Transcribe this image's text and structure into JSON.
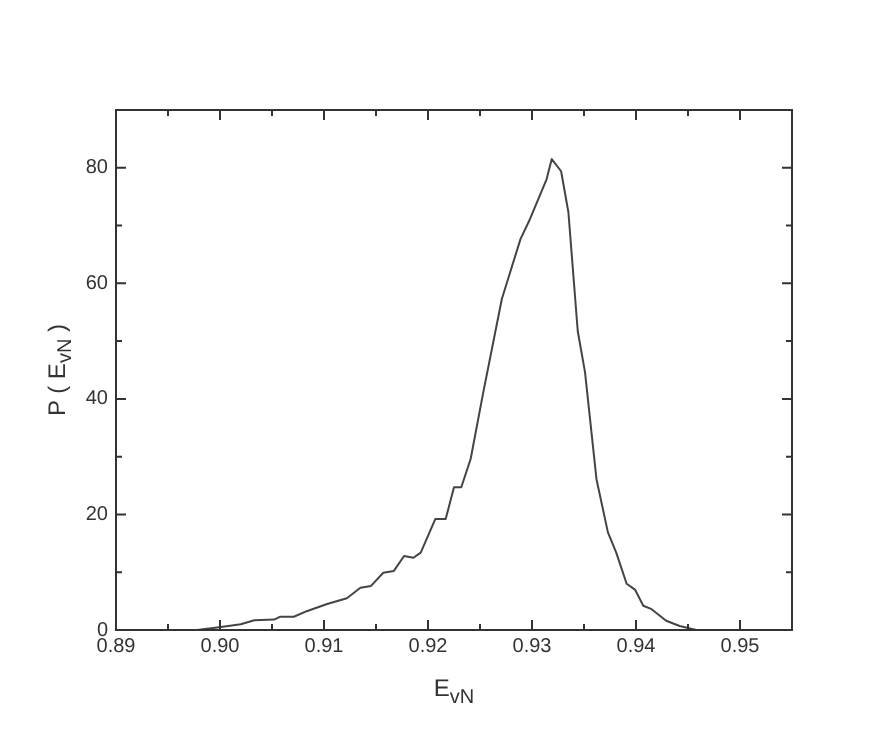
{
  "chart_data": {
    "type": "line",
    "xlabel": "E$_{vN}$",
    "ylabel": "P ( E$_{vN}$ )",
    "x": [
      0.8978,
      0.9001,
      0.902,
      0.9033,
      0.9052,
      0.9058,
      0.9071,
      0.9084,
      0.9103,
      0.9122,
      0.9135,
      0.9145,
      0.9157,
      0.9167,
      0.9177,
      0.9186,
      0.9193,
      0.9207,
      0.9217,
      0.9225,
      0.9232,
      0.9241,
      0.9253,
      0.9271,
      0.9289,
      0.9298,
      0.9314,
      0.9319,
      0.9328,
      0.9335,
      0.9344,
      0.9351,
      0.9362,
      0.9373,
      0.9381,
      0.9391,
      0.9399,
      0.9407,
      0.9415,
      0.9429,
      0.9442,
      0.9458
    ],
    "series": [
      {
        "color": "#444444",
        "values": [
          0,
          0.5,
          1,
          1.7,
          1.8,
          2.3,
          2.3,
          3.3,
          4.5,
          5.5,
          7.3,
          7.6,
          9.9,
          10.2,
          12.8,
          12.5,
          13.4,
          19.2,
          19.2,
          24.7,
          24.7,
          29.6,
          41,
          57.3,
          67.7,
          71.1,
          78,
          81.5,
          79.4,
          72.3,
          51.7,
          44.6,
          26.1,
          16.9,
          13.4,
          8,
          7,
          4.2,
          3.6,
          1.6,
          0.7,
          0
        ]
      }
    ],
    "xlim": [
      0.89,
      0.955
    ],
    "xticks": [
      {
        "value": 0.89,
        "label": "0.89"
      },
      {
        "value": 0.895,
        "label": null
      },
      {
        "value": 0.9,
        "label": "0.90"
      },
      {
        "value": 0.905,
        "label": null
      },
      {
        "value": 0.91,
        "label": "0.91"
      },
      {
        "value": 0.915,
        "label": null
      },
      {
        "value": 0.92,
        "label": "0.92"
      },
      {
        "value": 0.925,
        "label": null
      },
      {
        "value": 0.93,
        "label": "0.93"
      },
      {
        "value": 0.935,
        "label": null
      },
      {
        "value": 0.94,
        "label": "0.94"
      },
      {
        "value": 0.945,
        "label": null
      },
      {
        "value": 0.95,
        "label": "0.95"
      }
    ],
    "ylim": [
      0,
      90
    ],
    "yticks": [
      0,
      {
        "value": 10,
        "label": null
      },
      20,
      {
        "value": 30,
        "label": null
      },
      40,
      {
        "value": 50,
        "label": null
      },
      60,
      {
        "value": 70,
        "label": null
      },
      80
    ],
    "grid": false,
    "legend": false,
    "marker": "none",
    "line_style": "solid"
  }
}
